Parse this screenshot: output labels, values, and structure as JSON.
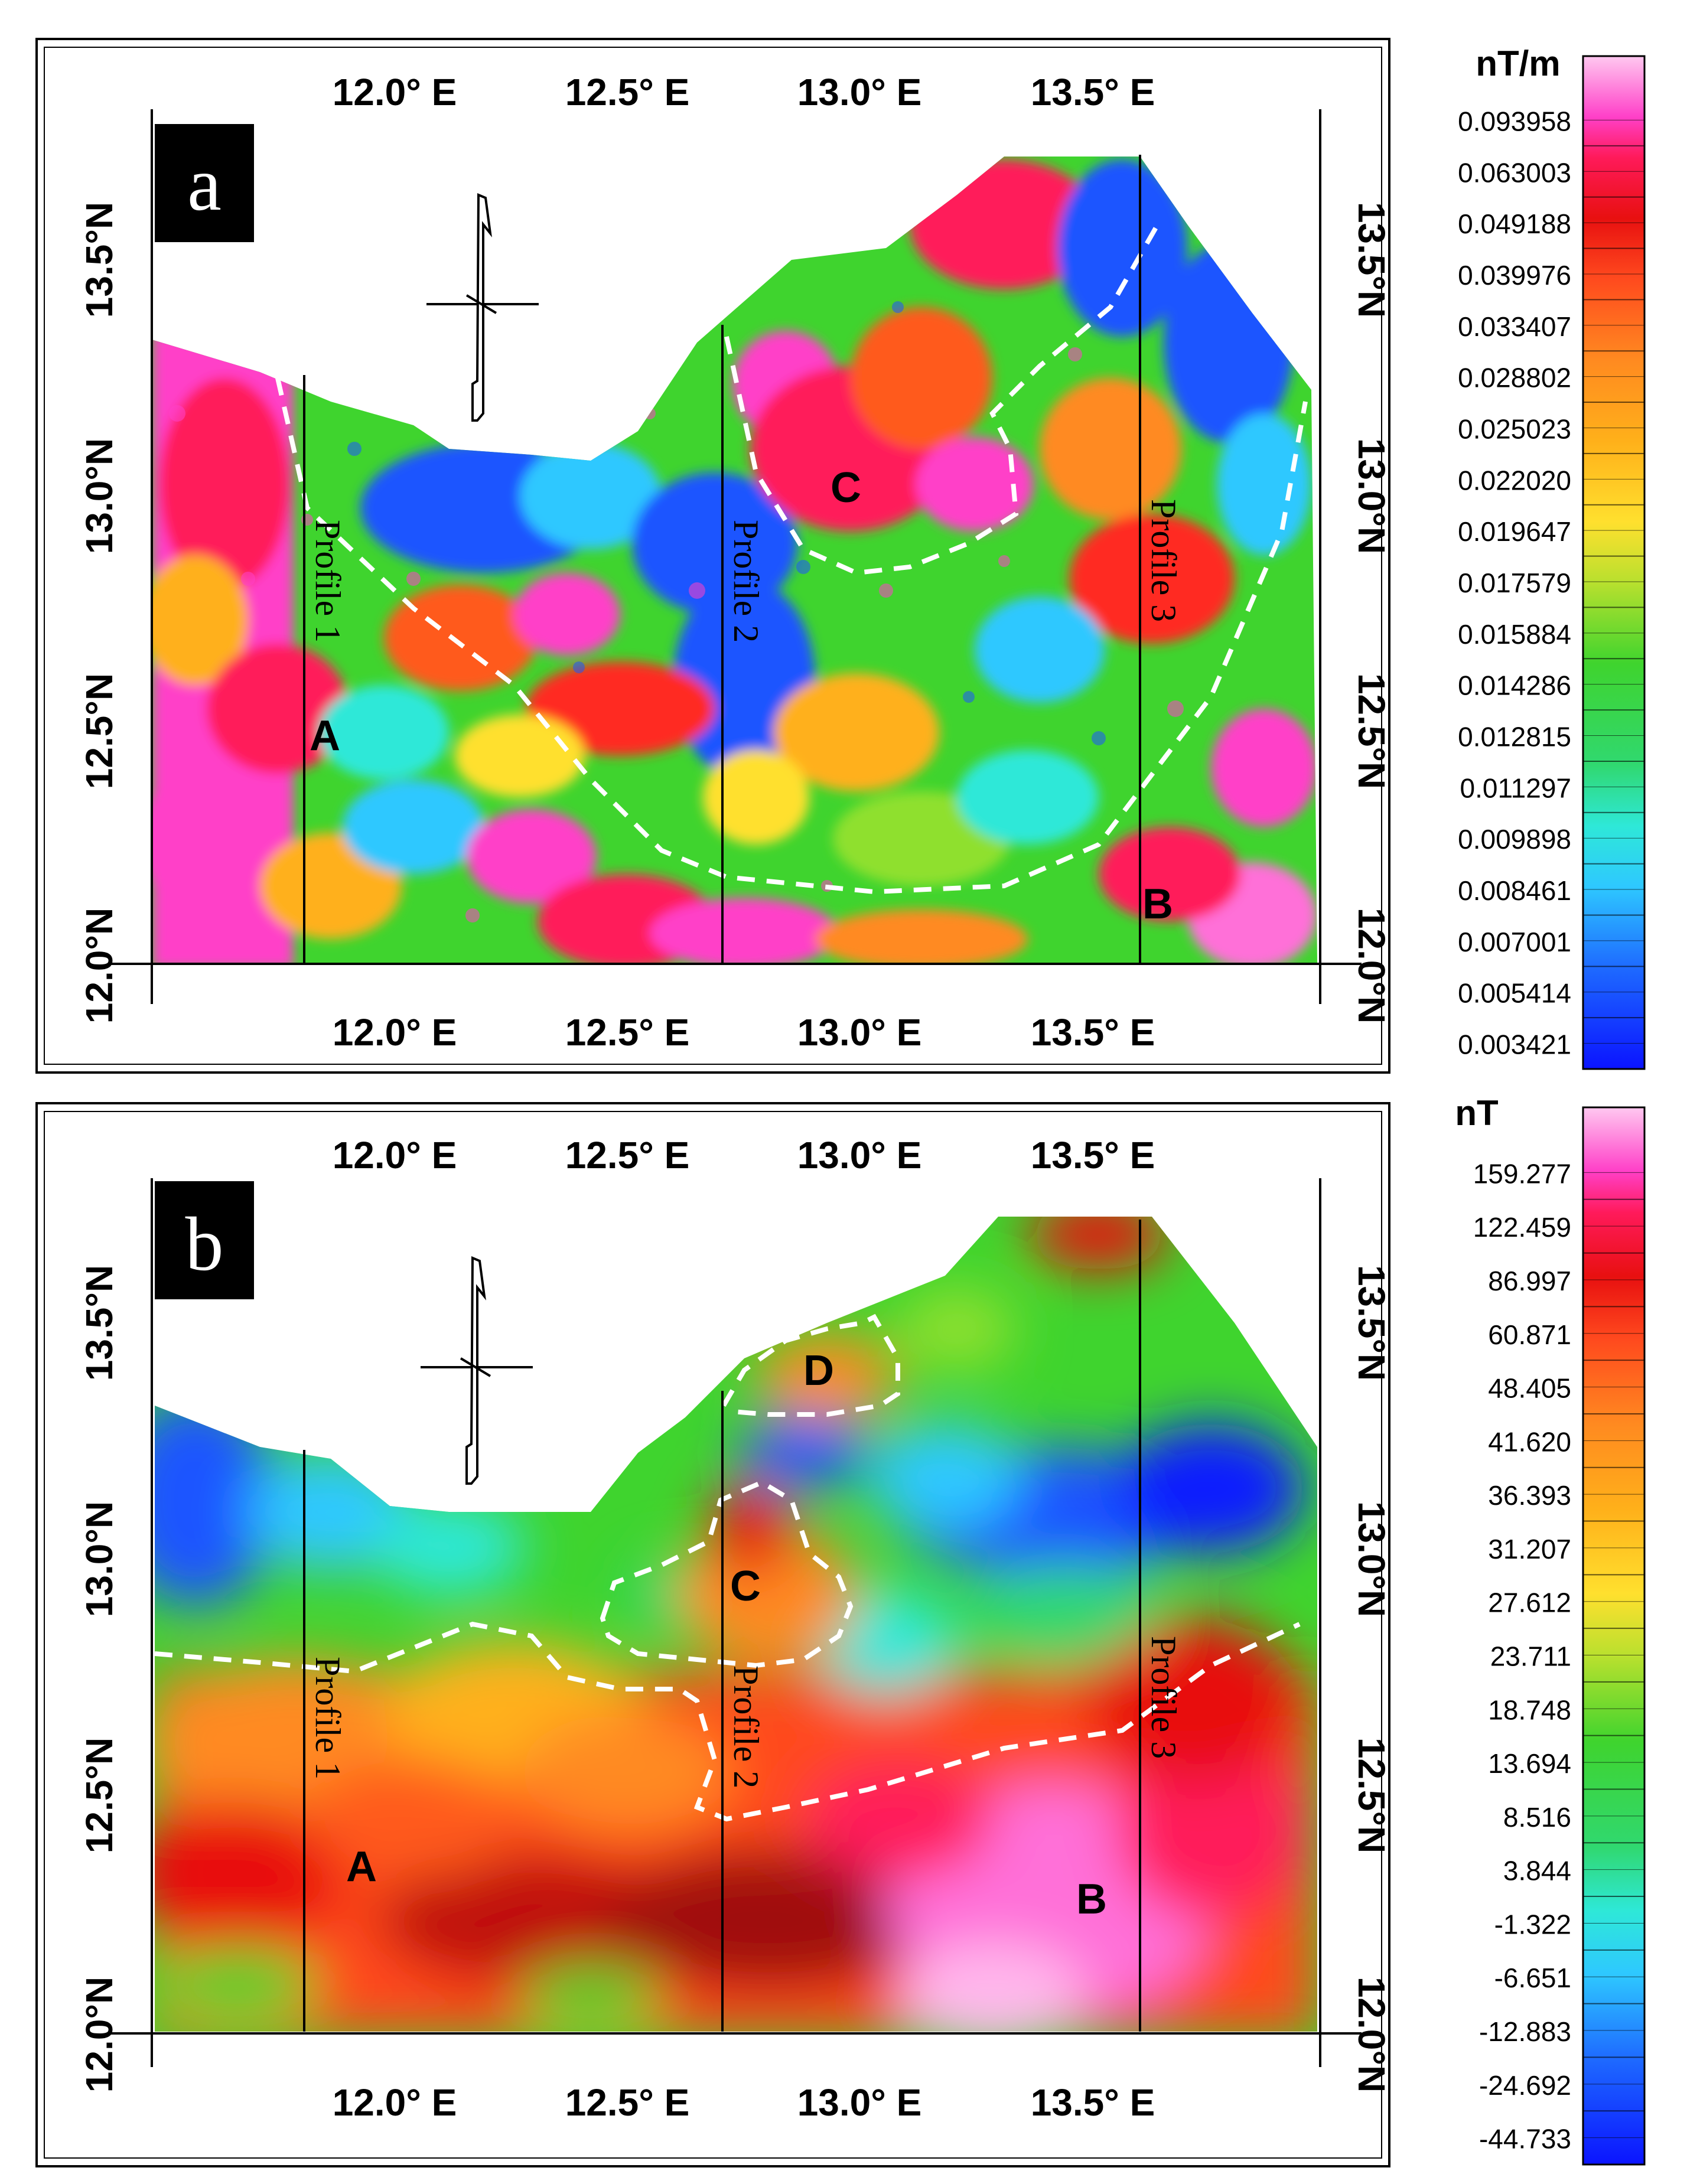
{
  "panels": [
    {
      "letter": "a",
      "lon_ticks": [
        "12.0° E",
        "12.5° E",
        "13.0° E",
        "13.5° E"
      ],
      "lat_ticks_left": [
        "13.5°N",
        "13.0°N",
        "12.5°N",
        "12.0°N"
      ],
      "lat_ticks_right": [
        "13.5°N",
        "13.0°N",
        "12.5°N",
        "12.0°N"
      ],
      "profiles": [
        "Profile 1",
        "Profile 2",
        "Profile 3"
      ],
      "zone_labels": [
        "A",
        "B",
        "C"
      ],
      "colorbar": {
        "unit": "nT/m",
        "values": [
          "0.093958",
          "0.063003",
          "0.049188",
          "0.039976",
          "0.033407",
          "0.028802",
          "0.025023",
          "0.022020",
          "0.019647",
          "0.017579",
          "0.015884",
          "0.014286",
          "0.012815",
          "0.011297",
          "0.009898",
          "0.008461",
          "0.007001",
          "0.005414",
          "0.003421"
        ]
      }
    },
    {
      "letter": "b",
      "lon_ticks": [
        "12.0° E",
        "12.5° E",
        "13.0° E",
        "13.5° E"
      ],
      "lat_ticks_left": [
        "13.5°N",
        "13.0°N",
        "12.5°N",
        "12.0°N"
      ],
      "lat_ticks_right": [
        "13.5°N",
        "13.0°N",
        "12.5°N",
        "12.0°N"
      ],
      "profiles": [
        "Profile 1",
        "Profile 2",
        "Profile 3"
      ],
      "zone_labels": [
        "A",
        "B",
        "C",
        "D"
      ],
      "colorbar": {
        "unit": "nT",
        "values": [
          "159.277",
          "122.459",
          "86.997",
          "60.871",
          "48.405",
          "41.620",
          "36.393",
          "31.207",
          "27.612",
          "23.711",
          "18.748",
          "13.694",
          "8.516",
          "3.844",
          "-1.322",
          "-6.651",
          "-12.883",
          "-24.692",
          "-44.733"
        ]
      }
    }
  ],
  "colors": {
    "palette": [
      "#0b1cff",
      "#1e55ff",
      "#2f8cff",
      "#2ec8ff",
      "#2ee8e0",
      "#2fe6a8",
      "#2fd65c",
      "#4fd82e",
      "#8fe02e",
      "#cfe62e",
      "#ffe82e",
      "#ffc81e",
      "#ffa81c",
      "#ff8a20",
      "#ff5a1e",
      "#ff2a22",
      "#e8102e",
      "#ff2f9c",
      "#ff70d8",
      "#ffb8ec"
    ],
    "map_background": "#ffffff",
    "frame": "#000000",
    "boundary": "#ffffff"
  }
}
